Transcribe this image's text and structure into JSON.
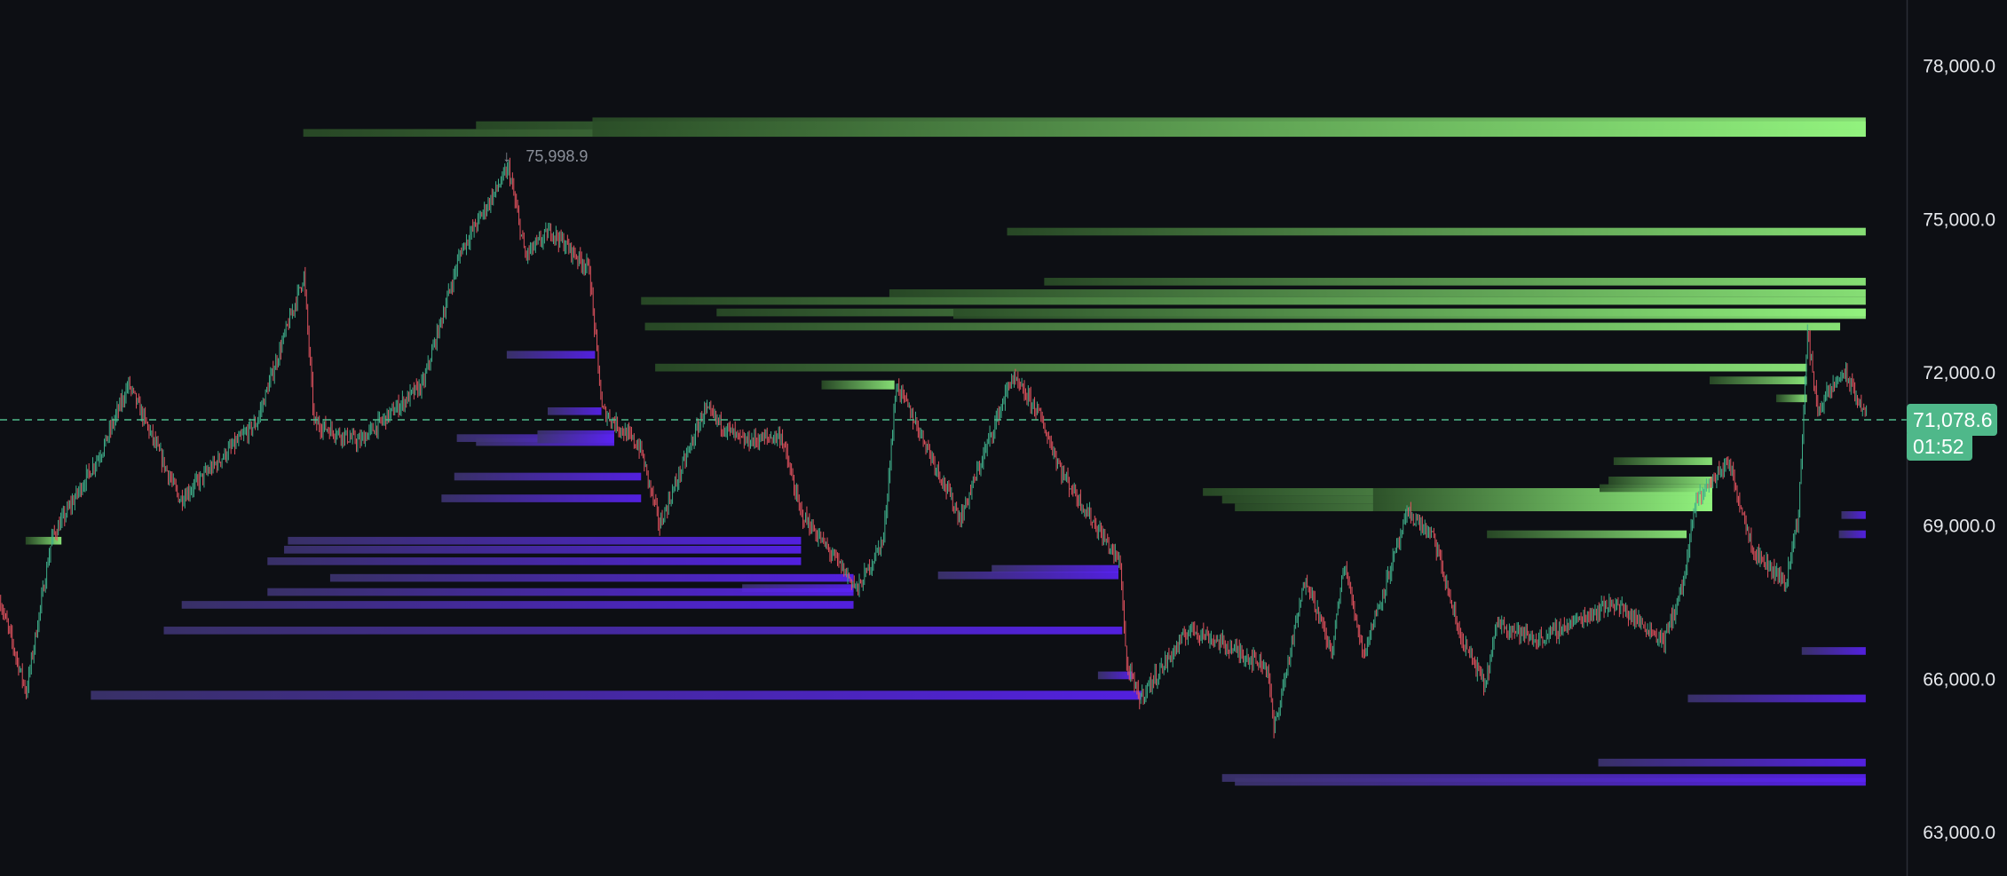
{
  "chart_data": {
    "type": "candlestick",
    "title": "",
    "y_axis": {
      "ticks": [
        78000,
        75000,
        72000,
        69000,
        66000,
        63000
      ],
      "tick_labels": [
        "78,000.0",
        "75,000.0",
        "72,000.0",
        "69,000.0",
        "66,000.0",
        "63,000.0"
      ],
      "position": "right"
    },
    "x_range_bars": [
      0,
      1490
    ],
    "grid": false,
    "current_price": {
      "value": 71078.6,
      "label": "71,078.6",
      "countdown": "01:52",
      "color": "#4fb88a"
    },
    "high_marker": {
      "bar": 397,
      "value": 75998.9,
      "label": "75,998.9"
    },
    "price_path": [
      [
        0,
        67508
      ],
      [
        20,
        65751
      ],
      [
        40,
        68763
      ],
      [
        80,
        70520
      ],
      [
        100,
        71775
      ],
      [
        140,
        69516
      ],
      [
        170,
        70269
      ],
      [
        200,
        71022
      ],
      [
        237,
        73909
      ],
      [
        245,
        71022
      ],
      [
        280,
        70646
      ],
      [
        330,
        71775
      ],
      [
        360,
        74411
      ],
      [
        397,
        75999
      ],
      [
        410,
        74285
      ],
      [
        430,
        74787
      ],
      [
        460,
        74034
      ],
      [
        470,
        71273
      ],
      [
        500,
        70520
      ],
      [
        515,
        69014
      ],
      [
        550,
        71273
      ],
      [
        580,
        70646
      ],
      [
        610,
        70771
      ],
      [
        625,
        69265
      ],
      [
        670,
        67759
      ],
      [
        690,
        68763
      ],
      [
        700,
        71775
      ],
      [
        720,
        70771
      ],
      [
        750,
        69140
      ],
      [
        790,
        71901
      ],
      [
        810,
        71273
      ],
      [
        830,
        70018
      ],
      [
        875,
        68261
      ],
      [
        880,
        66253
      ],
      [
        890,
        65626
      ],
      [
        930,
        67006
      ],
      [
        990,
        66253
      ],
      [
        995,
        65000
      ],
      [
        1020,
        68012
      ],
      [
        1040,
        66504
      ],
      [
        1050,
        68263
      ],
      [
        1065,
        66504
      ],
      [
        1100,
        69265
      ],
      [
        1120,
        68763
      ],
      [
        1140,
        66881
      ],
      [
        1160,
        65877
      ],
      [
        1170,
        67132
      ],
      [
        1200,
        66755
      ],
      [
        1260,
        67508
      ],
      [
        1300,
        66755
      ],
      [
        1315,
        67885
      ],
      [
        1325,
        69516
      ],
      [
        1350,
        70269
      ],
      [
        1370,
        68512
      ],
      [
        1395,
        67885
      ],
      [
        1405,
        69265
      ],
      [
        1412,
        72779
      ],
      [
        1420,
        71273
      ],
      [
        1440,
        72026
      ],
      [
        1458,
        71148
      ]
    ],
    "candle_colors": {
      "up": "#3fae8a",
      "down": "#e0525e"
    },
    "zone_colors": {
      "supply_dark": "#2a4d27",
      "supply_bright": "#93f57f",
      "demand_dark": "#3d3470",
      "demand_bright": "#5a22f5"
    },
    "supply_zones": [
      {
        "start": 237,
        "end": 1458,
        "top": 76770,
        "bottom": 76620
      },
      {
        "start": 372,
        "end": 1458,
        "top": 76921,
        "bottom": 76770
      },
      {
        "start": 463,
        "end": 1458,
        "top": 76996,
        "bottom": 76620
      },
      {
        "start": 787,
        "end": 1458,
        "top": 74837,
        "bottom": 74687
      },
      {
        "start": 816,
        "end": 1458,
        "top": 73858,
        "bottom": 73708
      },
      {
        "start": 695,
        "end": 1458,
        "top": 73633,
        "bottom": 73482
      },
      {
        "start": 501,
        "end": 1458,
        "top": 73482,
        "bottom": 73331
      },
      {
        "start": 560,
        "end": 1458,
        "top": 73256,
        "bottom": 73105
      },
      {
        "start": 745,
        "end": 1458,
        "top": 73256,
        "bottom": 73055
      },
      {
        "start": 504,
        "end": 1438,
        "top": 72980,
        "bottom": 72829
      },
      {
        "start": 512,
        "end": 1412,
        "top": 72177,
        "bottom": 72026
      },
      {
        "start": 642,
        "end": 699,
        "top": 71850,
        "bottom": 71675
      },
      {
        "start": 1336,
        "end": 1412,
        "top": 71926,
        "bottom": 71775
      },
      {
        "start": 1388,
        "end": 1412,
        "top": 71574,
        "bottom": 71424
      },
      {
        "start": 20,
        "end": 48,
        "top": 68788,
        "bottom": 68638
      },
      {
        "start": 940,
        "end": 1338,
        "top": 69742,
        "bottom": 69591
      },
      {
        "start": 955,
        "end": 1338,
        "top": 69591,
        "bottom": 69441
      },
      {
        "start": 965,
        "end": 1338,
        "top": 69441,
        "bottom": 69290
      },
      {
        "start": 1073,
        "end": 1338,
        "top": 69742,
        "bottom": 69290
      },
      {
        "start": 1261,
        "end": 1338,
        "top": 70344,
        "bottom": 70194
      },
      {
        "start": 1257,
        "end": 1338,
        "top": 69968,
        "bottom": 69817
      },
      {
        "start": 1250,
        "end": 1338,
        "top": 69817,
        "bottom": 69667
      },
      {
        "start": 1162,
        "end": 1318,
        "top": 68914,
        "bottom": 68763
      }
    ],
    "demand_zones": [
      {
        "start": 396,
        "end": 465,
        "top": 72428,
        "bottom": 72277
      },
      {
        "start": 428,
        "end": 470,
        "top": 71323,
        "bottom": 71173
      },
      {
        "start": 357,
        "end": 480,
        "top": 70796,
        "bottom": 70646
      },
      {
        "start": 372,
        "end": 480,
        "top": 70721,
        "bottom": 70570
      },
      {
        "start": 420,
        "end": 480,
        "top": 70872,
        "bottom": 70621
      },
      {
        "start": 355,
        "end": 501,
        "top": 70043,
        "bottom": 69893
      },
      {
        "start": 345,
        "end": 501,
        "top": 69617,
        "bottom": 69466
      },
      {
        "start": 225,
        "end": 626,
        "top": 68788,
        "bottom": 68638
      },
      {
        "start": 222,
        "end": 626,
        "top": 68613,
        "bottom": 68462
      },
      {
        "start": 209,
        "end": 626,
        "top": 68387,
        "bottom": 68236
      },
      {
        "start": 258,
        "end": 667,
        "top": 68060,
        "bottom": 67910
      },
      {
        "start": 580,
        "end": 667,
        "top": 67860,
        "bottom": 67709
      },
      {
        "start": 209,
        "end": 667,
        "top": 67784,
        "bottom": 67634
      },
      {
        "start": 142,
        "end": 667,
        "top": 67533,
        "bottom": 67383
      },
      {
        "start": 128,
        "end": 877,
        "top": 67031,
        "bottom": 66881
      },
      {
        "start": 775,
        "end": 874,
        "top": 68236,
        "bottom": 68086
      },
      {
        "start": 733,
        "end": 874,
        "top": 68110,
        "bottom": 67960
      },
      {
        "start": 858,
        "end": 885,
        "top": 66153,
        "bottom": 66002
      },
      {
        "start": 71,
        "end": 892,
        "top": 65776,
        "bottom": 65601
      },
      {
        "start": 1439,
        "end": 1458,
        "top": 69290,
        "bottom": 69140
      },
      {
        "start": 1437,
        "end": 1458,
        "top": 68914,
        "bottom": 68763
      },
      {
        "start": 1408,
        "end": 1458,
        "top": 66630,
        "bottom": 66480
      },
      {
        "start": 1319,
        "end": 1458,
        "top": 65701,
        "bottom": 65550
      },
      {
        "start": 1249,
        "end": 1458,
        "top": 64446,
        "bottom": 64295
      },
      {
        "start": 955,
        "end": 1458,
        "top": 64145,
        "bottom": 63994
      },
      {
        "start": 965,
        "end": 1458,
        "top": 64070,
        "bottom": 63919
      }
    ]
  }
}
